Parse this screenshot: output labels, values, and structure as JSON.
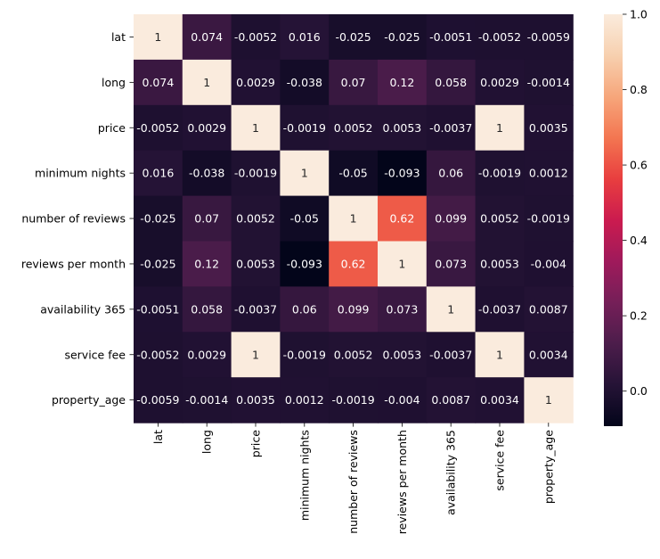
{
  "chart_data": {
    "type": "heatmap",
    "title": "",
    "xlabel": "",
    "ylabel": "",
    "x_labels": [
      "lat",
      "long",
      "price",
      "minimum nights",
      "number of reviews",
      "reviews per month",
      "availability 365",
      "service fee",
      "property_age"
    ],
    "y_labels": [
      "lat",
      "long",
      "price",
      "minimum nights",
      "number of reviews",
      "reviews per month",
      "availability 365",
      "service fee",
      "property_age"
    ],
    "values": [
      [
        1,
        0.074,
        -0.0052,
        0.016,
        -0.025,
        -0.025,
        -0.0051,
        -0.0052,
        -0.0059
      ],
      [
        0.074,
        1,
        0.0029,
        -0.038,
        0.07,
        0.12,
        0.058,
        0.0029,
        -0.0014
      ],
      [
        -0.0052,
        0.0029,
        1,
        -0.0019,
        0.0052,
        0.0053,
        -0.0037,
        1,
        0.0035
      ],
      [
        0.016,
        -0.038,
        -0.0019,
        1,
        -0.05,
        -0.093,
        0.06,
        -0.0019,
        0.0012
      ],
      [
        -0.025,
        0.07,
        0.0052,
        -0.05,
        1,
        0.62,
        0.099,
        0.0052,
        -0.0019
      ],
      [
        -0.025,
        0.12,
        0.0053,
        -0.093,
        0.62,
        1,
        0.073,
        0.0053,
        -0.004
      ],
      [
        -0.0051,
        0.058,
        -0.0037,
        0.06,
        0.099,
        0.073,
        1,
        -0.0037,
        0.0087
      ],
      [
        -0.0052,
        0.0029,
        1,
        -0.0019,
        0.0052,
        0.0053,
        -0.0037,
        1,
        0.0034
      ],
      [
        -0.0059,
        -0.0014,
        0.0035,
        0.0012,
        -0.0019,
        -0.004,
        0.0087,
        0.0034,
        1
      ]
    ],
    "annotations": [
      [
        "1",
        "0.074",
        "-0.0052",
        "0.016",
        "-0.025",
        "-0.025",
        "-0.0051",
        "-0.0052",
        "-0.0059"
      ],
      [
        "0.074",
        "1",
        "0.0029",
        "-0.038",
        "0.07",
        "0.12",
        "0.058",
        "0.0029",
        "-0.0014"
      ],
      [
        "-0.0052",
        "0.0029",
        "1",
        "-0.0019",
        "0.0052",
        "0.0053",
        "-0.0037",
        "1",
        "0.0035"
      ],
      [
        "0.016",
        "-0.038",
        "-0.0019",
        "1",
        "-0.05",
        "-0.093",
        "0.06",
        "-0.0019",
        "0.0012"
      ],
      [
        "-0.025",
        "0.07",
        "0.0052",
        "-0.05",
        "1",
        "0.62",
        "0.099",
        "0.0052",
        "-0.0019"
      ],
      [
        "-0.025",
        "0.12",
        "0.0053",
        "-0.093",
        "0.62",
        "1",
        "0.073",
        "0.0053",
        "-0.004"
      ],
      [
        "-0.0051",
        "0.058",
        "-0.0037",
        "0.06",
        "0.099",
        "0.073",
        "1",
        "-0.0037",
        "0.0087"
      ],
      [
        "-0.0052",
        "0.0029",
        "1",
        "-0.0019",
        "0.0052",
        "0.0053",
        "-0.0037",
        "1",
        "0.0034"
      ],
      [
        "-0.0059",
        "-0.0014",
        "0.0035",
        "0.0012",
        "-0.0019",
        "-0.004",
        "0.0087",
        "0.0034",
        "1"
      ]
    ],
    "colorbar": {
      "colormap": "rocket",
      "vmin": -0.093,
      "vmax": 1,
      "ticks": [
        0.0,
        0.2,
        0.4,
        0.6,
        0.8,
        1.0
      ],
      "tick_labels": [
        "0.0",
        "0.2",
        "0.4",
        "0.6",
        "0.8",
        "1.0"
      ],
      "placement": "right"
    },
    "grid": false,
    "legend": "none"
  }
}
